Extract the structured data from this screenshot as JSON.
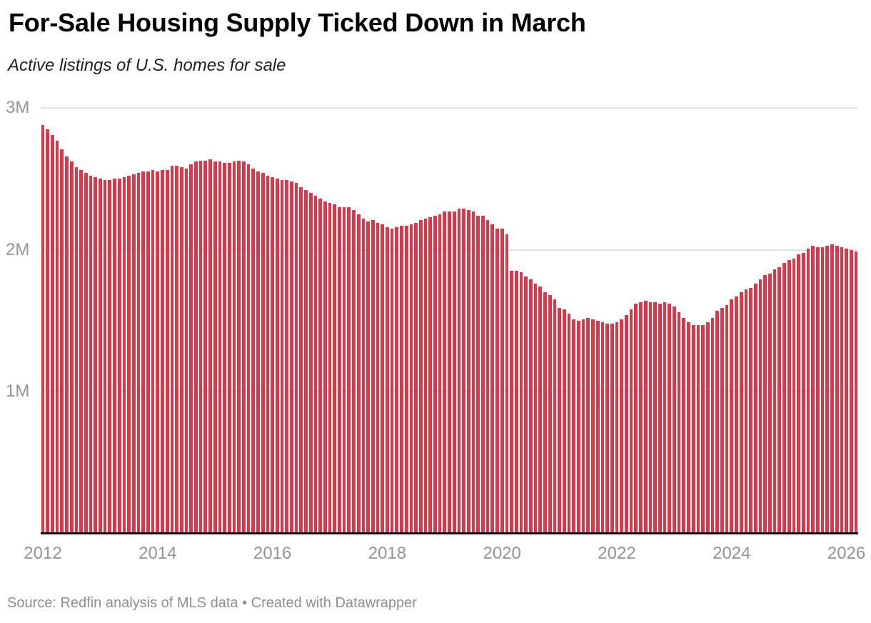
{
  "header": {
    "title": "For-Sale Housing Supply Ticked Down in March",
    "subtitle": "Active listings of U.S. homes for sale"
  },
  "footer": {
    "source": "Source: Redfin analysis of MLS data • Created with Datawrapper"
  },
  "chart_data": {
    "type": "bar",
    "title": "For-Sale Housing Supply Ticked Down in March",
    "subtitle": "Active listings of U.S. homes for sale",
    "unit": "millions of active listings",
    "frequency": "monthly",
    "x_start": "2012-01",
    "x_end": "2026-03",
    "ylim": [
      0,
      3
    ],
    "grid": "horizontal",
    "legend": "none",
    "bar_color": "#d9384a",
    "grid_color": "#e3e3e3",
    "axis_line_color": "#111111",
    "tick_color": "#949494",
    "y_ticks": [
      {
        "label": "1M",
        "value": 1
      },
      {
        "label": "2M",
        "value": 2
      },
      {
        "label": "3M",
        "value": 3
      }
    ],
    "x_ticks": [
      {
        "label": "2012",
        "month_index": 0
      },
      {
        "label": "2014",
        "month_index": 24
      },
      {
        "label": "2016",
        "month_index": 48
      },
      {
        "label": "2018",
        "month_index": 72
      },
      {
        "label": "2020",
        "month_index": 96
      },
      {
        "label": "2022",
        "month_index": 120
      },
      {
        "label": "2024",
        "month_index": 144
      },
      {
        "label": "2026",
        "month_index": 168
      }
    ],
    "values_millions": [
      2.88,
      2.85,
      2.81,
      2.77,
      2.71,
      2.66,
      2.62,
      2.58,
      2.56,
      2.54,
      2.52,
      2.51,
      2.5,
      2.49,
      2.49,
      2.5,
      2.5,
      2.51,
      2.52,
      2.53,
      2.54,
      2.55,
      2.55,
      2.56,
      2.55,
      2.56,
      2.56,
      2.59,
      2.59,
      2.58,
      2.57,
      2.6,
      2.62,
      2.63,
      2.63,
      2.64,
      2.62,
      2.62,
      2.61,
      2.61,
      2.62,
      2.63,
      2.62,
      2.6,
      2.57,
      2.55,
      2.54,
      2.52,
      2.51,
      2.5,
      2.49,
      2.49,
      2.48,
      2.47,
      2.44,
      2.42,
      2.4,
      2.38,
      2.36,
      2.34,
      2.33,
      2.32,
      2.3,
      2.3,
      2.3,
      2.28,
      2.25,
      2.22,
      2.2,
      2.21,
      2.19,
      2.18,
      2.16,
      2.15,
      2.16,
      2.17,
      2.17,
      2.18,
      2.19,
      2.21,
      2.22,
      2.23,
      2.24,
      2.25,
      2.27,
      2.27,
      2.27,
      2.29,
      2.29,
      2.28,
      2.27,
      2.24,
      2.24,
      2.21,
      2.18,
      2.15,
      2.15,
      2.11,
      1.85,
      1.85,
      1.84,
      1.81,
      1.79,
      1.76,
      1.74,
      1.7,
      1.68,
      1.65,
      1.59,
      1.58,
      1.55,
      1.51,
      1.5,
      1.51,
      1.52,
      1.51,
      1.5,
      1.49,
      1.48,
      1.48,
      1.49,
      1.51,
      1.54,
      1.58,
      1.62,
      1.63,
      1.64,
      1.63,
      1.63,
      1.62,
      1.63,
      1.62,
      1.6,
      1.56,
      1.52,
      1.49,
      1.47,
      1.47,
      1.47,
      1.49,
      1.52,
      1.57,
      1.59,
      1.61,
      1.65,
      1.67,
      1.7,
      1.72,
      1.73,
      1.76,
      1.79,
      1.82,
      1.83,
      1.86,
      1.88,
      1.91,
      1.93,
      1.94,
      1.97,
      1.98,
      2.01,
      2.03,
      2.02,
      2.02,
      2.03,
      2.04,
      2.03,
      2.02,
      2.01,
      2.0,
      1.99
    ]
  }
}
